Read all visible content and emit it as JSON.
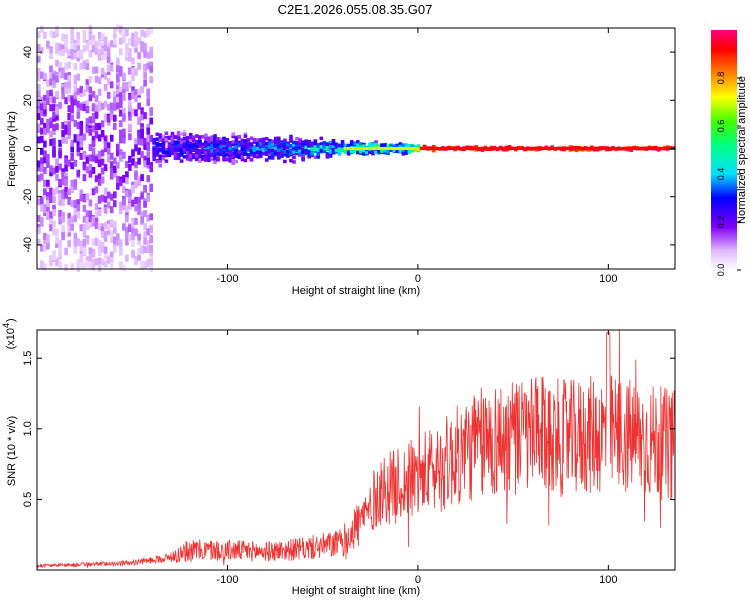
{
  "title": "C2E1.2026.055.08.35.G07",
  "chart_data": [
    {
      "type": "heatmap",
      "xlabel": "Height of straight line (km)",
      "ylabel": "Frequency (Hz)",
      "xlim": [
        -200,
        135
      ],
      "ylim": [
        -50,
        50
      ],
      "xticks": [
        -100,
        0,
        100
      ],
      "yticks": [
        40,
        20,
        0,
        -20,
        -40
      ],
      "colorbar": {
        "label": "Normalized spectral amplitude",
        "range": [
          0,
          1
        ],
        "ticks": [
          "0.0",
          "0.2",
          "0.4",
          "0.6",
          "0.8"
        ],
        "tick_values": [
          0.0,
          0.2,
          0.4,
          0.6,
          0.8
        ]
      },
      "signal_regions": [
        {
          "x_range": [
            -200,
            -140
          ],
          "freq_spread_hz": 50,
          "amplitude": 0.2
        },
        {
          "x_range": [
            -140,
            -60
          ],
          "freq_spread_hz": 8,
          "amplitude": 0.35
        },
        {
          "x_range": [
            -60,
            0
          ],
          "freq_spread_hz": 4,
          "amplitude": 0.55
        },
        {
          "x_range": [
            0,
            135
          ],
          "freq_spread_hz": 1,
          "amplitude": 0.95
        }
      ]
    },
    {
      "type": "line",
      "xlabel": "Height of straight line (km)",
      "ylabel": "SNR (10 * v/v)",
      "y_scale_label": "(x10",
      "y_scale_exp": "4",
      "xlim": [
        -200,
        135
      ],
      "ylim": [
        0,
        17000
      ],
      "xticks": [
        -100,
        0,
        100
      ],
      "yticks": [
        0.5,
        1.0,
        1.5
      ],
      "yticks_values": [
        5000,
        10000,
        15000
      ],
      "color": "#ee3333",
      "envelope": {
        "x": [
          -200,
          -150,
          -130,
          -120,
          -100,
          -80,
          -60,
          -40,
          -30,
          -25,
          -20,
          -10,
          0,
          10,
          20,
          30,
          40,
          60,
          80,
          100,
          120,
          135
        ],
        "y": [
          300,
          500,
          900,
          1400,
          1400,
          1300,
          1500,
          1900,
          3500,
          4500,
          5600,
          6000,
          6600,
          7200,
          8000,
          8800,
          9200,
          9500,
          9300,
          9700,
          9200,
          8800
        ]
      }
    }
  ]
}
